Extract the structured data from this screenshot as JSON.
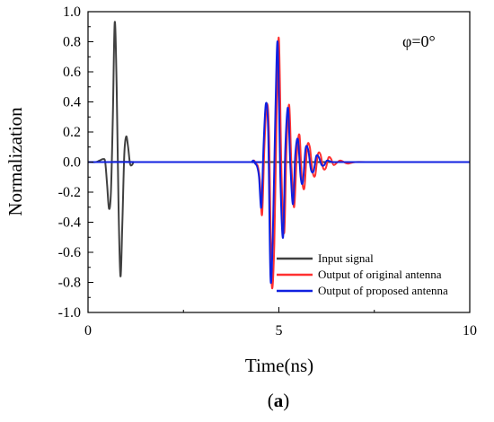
{
  "chart_data": {
    "type": "line",
    "xlabel": "Time(ns)",
    "ylabel": "Normalization",
    "xlim": [
      0,
      10
    ],
    "ylim": [
      -1.0,
      1.0
    ],
    "xticks": [
      0,
      5,
      10
    ],
    "yticks": [
      -1.0,
      -0.8,
      -0.6,
      -0.4,
      -0.2,
      0.0,
      0.2,
      0.4,
      0.6,
      0.8,
      1.0
    ],
    "annotation": "φ=0°",
    "caption": {
      "open": "(",
      "bold": "a",
      "close": ")"
    },
    "legend_position": "bottom-right",
    "series": [
      {
        "name": "Input signal",
        "color": "#404040",
        "x": [
          0.0,
          0.2,
          0.3,
          0.4,
          0.45,
          0.5,
          0.55,
          0.6,
          0.65,
          0.7,
          0.75,
          0.8,
          0.85,
          0.9,
          0.95,
          1.0,
          1.05,
          1.1,
          1.15,
          1.2,
          1.3,
          10.0
        ],
        "y": [
          0.0,
          0.0,
          0.01,
          0.02,
          0.0,
          -0.15,
          -0.31,
          -0.2,
          0.3,
          0.93,
          0.5,
          -0.3,
          -0.76,
          -0.4,
          0.05,
          0.17,
          0.1,
          -0.01,
          -0.02,
          0.0,
          0.0,
          0.0
        ]
      },
      {
        "name": "Output of original antenna",
        "color": "#ff3030",
        "x": [
          0.0,
          4.2,
          4.3,
          4.35,
          4.4,
          4.45,
          4.5,
          4.56,
          4.62,
          4.68,
          4.74,
          4.81,
          4.88,
          4.94,
          5.0,
          5.07,
          5.14,
          5.2,
          5.27,
          5.33,
          5.4,
          5.47,
          5.54,
          5.6,
          5.67,
          5.74,
          5.81,
          5.88,
          5.95,
          6.02,
          6.09,
          6.16,
          6.23,
          6.3,
          6.37,
          6.44,
          6.6,
          6.8,
          7.0,
          7.5,
          10.0
        ],
        "y": [
          0.0,
          0.0,
          0.0,
          0.01,
          -0.01,
          -0.03,
          -0.12,
          -0.35,
          0.1,
          0.38,
          0.2,
          -0.8,
          -0.55,
          0.3,
          0.82,
          -0.1,
          -0.47,
          0.1,
          0.38,
          -0.03,
          -0.3,
          0.05,
          0.18,
          -0.1,
          -0.17,
          0.1,
          0.1,
          -0.06,
          -0.09,
          0.05,
          0.05,
          -0.04,
          -0.04,
          0.03,
          0.02,
          -0.02,
          0.01,
          -0.01,
          0.0,
          0.0,
          0.0
        ]
      },
      {
        "name": "Output of proposed antenna",
        "color": "#1020e0",
        "x": [
          0.0,
          4.2,
          4.28,
          4.33,
          4.38,
          4.43,
          4.48,
          4.54,
          4.6,
          4.66,
          4.72,
          4.78,
          4.84,
          4.91,
          4.97,
          5.04,
          5.11,
          5.17,
          5.24,
          5.3,
          5.37,
          5.43,
          5.5,
          5.57,
          5.63,
          5.7,
          5.77,
          5.84,
          5.91,
          5.98,
          6.05,
          6.12,
          6.19,
          6.26,
          6.4,
          6.6,
          6.8,
          7.0,
          7.5,
          10.0
        ],
        "y": [
          0.0,
          0.0,
          0.0,
          0.01,
          -0.01,
          -0.03,
          -0.1,
          -0.3,
          0.12,
          0.39,
          0.2,
          -0.77,
          -0.5,
          0.35,
          0.79,
          -0.12,
          -0.5,
          0.1,
          0.36,
          -0.02,
          -0.28,
          0.05,
          0.15,
          -0.1,
          -0.13,
          0.09,
          0.08,
          -0.05,
          -0.06,
          0.04,
          0.03,
          -0.02,
          -0.02,
          0.01,
          0.0,
          0.0,
          0.0,
          0.0,
          0.0,
          0.0
        ]
      }
    ]
  }
}
